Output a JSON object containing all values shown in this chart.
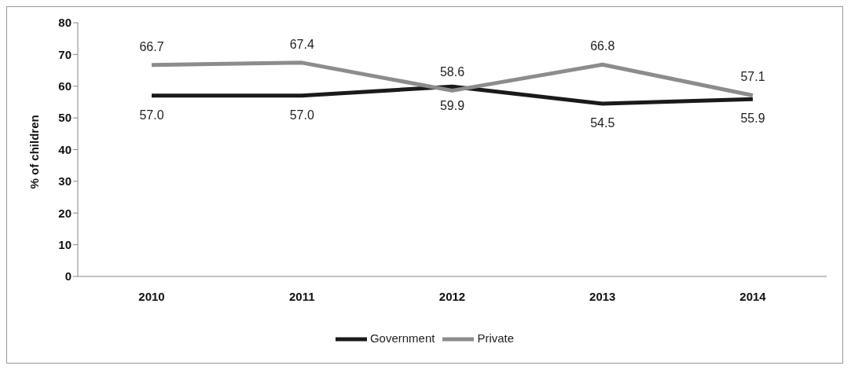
{
  "chart_data": {
    "type": "line",
    "ylabel": "% of children",
    "categories": [
      "2010",
      "2011",
      "2012",
      "2013",
      "2014"
    ],
    "series": [
      {
        "name": "Government",
        "color": "#1a1a1a",
        "values": [
          57.0,
          57.0,
          59.9,
          54.5,
          55.9
        ],
        "value_labels": [
          "57.0",
          "57.0",
          "59.9",
          "54.5",
          "55.9"
        ]
      },
      {
        "name": "Private",
        "color": "#8c8c8c",
        "values": [
          66.7,
          67.4,
          58.6,
          66.8,
          57.1
        ],
        "value_labels": [
          "66.7",
          "67.4",
          "58.6",
          "66.8",
          "57.1"
        ]
      }
    ],
    "ylim": [
      0,
      80
    ],
    "yticks": [
      0,
      10,
      20,
      30,
      40,
      50,
      60,
      70,
      80
    ],
    "grid": false,
    "legend": "bottom",
    "marker": "none",
    "line_style": "solid"
  }
}
